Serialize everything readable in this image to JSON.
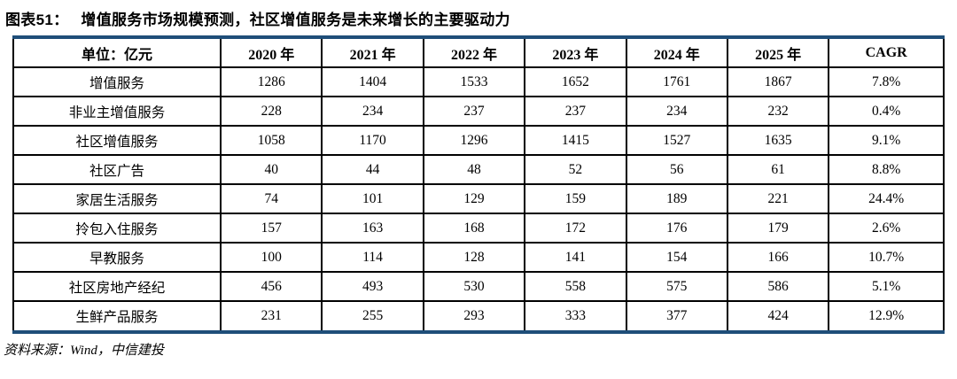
{
  "title": {
    "prefix": "图表51：",
    "text": "增值服务市场规模预测，社区增值服务是未来增长的主要驱动力"
  },
  "table": {
    "headers": [
      "单位：亿元",
      "2020 年",
      "2021 年",
      "2022 年",
      "2023 年",
      "2024 年",
      "2025 年",
      "CAGR"
    ],
    "rows": [
      {
        "label": "增值服务",
        "values": [
          "1286",
          "1404",
          "1533",
          "1652",
          "1761",
          "1867",
          "7.8%"
        ]
      },
      {
        "label": "非业主增值服务",
        "values": [
          "228",
          "234",
          "237",
          "237",
          "234",
          "232",
          "0.4%"
        ]
      },
      {
        "label": "社区增值服务",
        "values": [
          "1058",
          "1170",
          "1296",
          "1415",
          "1527",
          "1635",
          "9.1%"
        ]
      },
      {
        "label": "社区广告",
        "values": [
          "40",
          "44",
          "48",
          "52",
          "56",
          "61",
          "8.8%"
        ]
      },
      {
        "label": "家居生活服务",
        "values": [
          "74",
          "101",
          "129",
          "159",
          "189",
          "221",
          "24.4%"
        ]
      },
      {
        "label": "拎包入住服务",
        "values": [
          "157",
          "163",
          "168",
          "172",
          "176",
          "179",
          "2.6%"
        ]
      },
      {
        "label": "早教服务",
        "values": [
          "100",
          "114",
          "128",
          "141",
          "154",
          "166",
          "10.7%"
        ]
      },
      {
        "label": "社区房地产经纪",
        "values": [
          "456",
          "493",
          "530",
          "558",
          "575",
          "586",
          "5.1%"
        ]
      },
      {
        "label": "生鲜产品服务",
        "values": [
          "231",
          "255",
          "293",
          "333",
          "377",
          "424",
          "12.9%"
        ]
      }
    ]
  },
  "source": "资料来源：Wind，中信建投",
  "colors": {
    "accent_border": "#1F4E79",
    "grid_line": "#000000",
    "text": "#000000",
    "background": "#FFFFFF"
  }
}
